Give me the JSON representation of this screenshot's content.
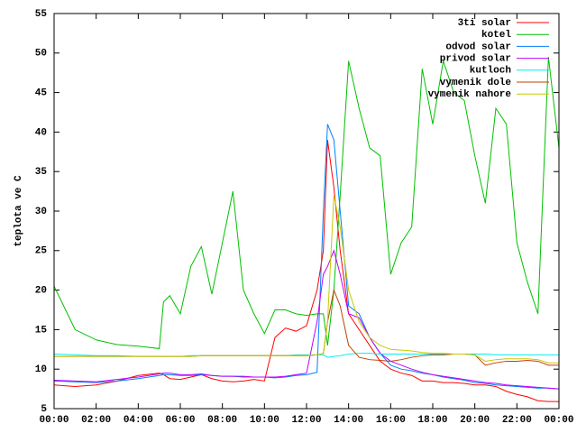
{
  "chart_data": {
    "type": "line",
    "y_label": "teplota ve C",
    "xlim": [
      0,
      24
    ],
    "xticks": [
      {
        "value": 0,
        "label": "00:00"
      },
      {
        "value": 2,
        "label": "02:00"
      },
      {
        "value": 4,
        "label": "04:00"
      },
      {
        "value": 6,
        "label": "06:00"
      },
      {
        "value": 8,
        "label": "08:00"
      },
      {
        "value": 10,
        "label": "10:00"
      },
      {
        "value": 12,
        "label": "12:00"
      },
      {
        "value": 14,
        "label": "14:00"
      },
      {
        "value": 16,
        "label": "16:00"
      },
      {
        "value": 18,
        "label": "18:00"
      },
      {
        "value": 20,
        "label": "20:00"
      },
      {
        "value": 22,
        "label": "22:00"
      },
      {
        "value": 24,
        "label": "00:00"
      }
    ],
    "ylim": [
      5,
      55
    ],
    "yticks": [
      5,
      10,
      15,
      20,
      25,
      30,
      35,
      40,
      45,
      50,
      55
    ],
    "legend": "top-right",
    "x": [
      0,
      1,
      2,
      3,
      4,
      5,
      5.2,
      5.5,
      6,
      6.5,
      7,
      7.5,
      8,
      8.5,
      9,
      9.5,
      10,
      10.5,
      11,
      11.5,
      12,
      12.5,
      12.8,
      13,
      13.3,
      13.6,
      14,
      14.5,
      15,
      15.5,
      16,
      16.5,
      17,
      17.5,
      18,
      18.5,
      19,
      19.5,
      20,
      20.5,
      21,
      21.5,
      22,
      22.5,
      23,
      23.5,
      24
    ],
    "series": [
      {
        "name": "3ti solar",
        "color": "#ff0000",
        "values": [
          8,
          7.8,
          8,
          8.5,
          9.2,
          9.5,
          9.3,
          8.8,
          8.7,
          9,
          9.3,
          8.8,
          8.5,
          8.4,
          8.5,
          8.7,
          8.5,
          14,
          15.2,
          14.8,
          15.5,
          20,
          25,
          39,
          33,
          25,
          17,
          15,
          13,
          11,
          10,
          9.5,
          9.2,
          8.5,
          8.5,
          8.3,
          8.3,
          8.2,
          8,
          8,
          7.8,
          7.2,
          6.8,
          6.5,
          6,
          5.9,
          5.9
        ]
      },
      {
        "name": "kotel",
        "color": "#00c000",
        "values": [
          20.5,
          15,
          13.7,
          13.1,
          12.9,
          12.6,
          18.5,
          19.3,
          17,
          23,
          25.5,
          19.5,
          26,
          32.5,
          20,
          17,
          14.5,
          17.5,
          17.5,
          17,
          16.8,
          17,
          17,
          13,
          20,
          32,
          49,
          43,
          38,
          37,
          22,
          26,
          28,
          48,
          41,
          49,
          45,
          44,
          37,
          31,
          43,
          41,
          26,
          21,
          17,
          49.5,
          38
        ]
      },
      {
        "name": "odvod solar",
        "color": "#0080ff",
        "values": [
          8.5,
          8.4,
          8.3,
          8.5,
          8.8,
          9.2,
          9.3,
          9.3,
          9.2,
          9.2,
          9.3,
          9.2,
          9.1,
          9.1,
          9.0,
          9.0,
          9.0,
          8.9,
          9.0,
          9.2,
          9.3,
          9.6,
          30,
          41,
          39,
          30,
          18,
          17,
          14,
          12,
          10.5,
          10,
          9.8,
          9.5,
          9.3,
          9.0,
          8.8,
          8.6,
          8.3,
          8.2,
          8.0,
          7.9,
          7.8,
          7.7,
          7.6,
          7.6,
          7.5
        ]
      },
      {
        "name": "privod solar",
        "color": "#c000ff",
        "values": [
          8.6,
          8.5,
          8.4,
          8.7,
          9.0,
          9.4,
          9.5,
          9.5,
          9.3,
          9.3,
          9.4,
          9.2,
          9.1,
          9.1,
          9.1,
          9.0,
          9.0,
          9.0,
          9.1,
          9.3,
          9.5,
          16,
          22,
          23,
          25,
          22,
          17,
          16.5,
          14,
          12,
          11,
          10.5,
          10,
          9.6,
          9.3,
          9.1,
          8.9,
          8.7,
          8.5,
          8.3,
          8.2,
          8.0,
          7.9,
          7.8,
          7.7,
          7.6,
          7.5
        ]
      },
      {
        "name": "kutloch",
        "color": "#00eeee",
        "values": [
          11.9,
          11.8,
          11.7,
          11.7,
          11.6,
          11.6,
          11.6,
          11.6,
          11.6,
          11.7,
          11.7,
          11.7,
          11.7,
          11.7,
          11.7,
          11.7,
          11.7,
          11.7,
          11.7,
          11.8,
          11.8,
          11.8,
          11.8,
          11.5,
          11.6,
          11.7,
          11.9,
          12,
          12,
          11.9,
          11.9,
          11.9,
          11.9,
          11.9,
          11.9,
          11.9,
          11.9,
          11.9,
          11.9,
          11.9,
          11.8,
          11.8,
          11.8,
          11.8,
          11.8,
          11.8,
          11.8
        ]
      },
      {
        "name": "vymenik dole",
        "color": "#c04000",
        "values": [
          11.6,
          11.6,
          11.6,
          11.6,
          11.6,
          11.6,
          11.6,
          11.6,
          11.6,
          11.6,
          11.7,
          11.7,
          11.7,
          11.7,
          11.7,
          11.7,
          11.7,
          11.7,
          11.7,
          11.7,
          11.7,
          11.8,
          12,
          16,
          20,
          18,
          13,
          11.5,
          11.2,
          11.1,
          11,
          11.2,
          11.5,
          11.7,
          11.8,
          11.8,
          11.9,
          11.9,
          11.8,
          10.5,
          10.8,
          11,
          11,
          11.1,
          11,
          10.5,
          10.5
        ]
      },
      {
        "name": "vymenik nahore",
        "color": "#c8c800",
        "values": [
          11.6,
          11.6,
          11.6,
          11.6,
          11.6,
          11.6,
          11.6,
          11.6,
          11.6,
          11.6,
          11.7,
          11.7,
          11.7,
          11.7,
          11.7,
          11.7,
          11.7,
          11.7,
          11.7,
          11.7,
          11.7,
          11.8,
          12,
          16,
          32,
          28,
          20,
          16,
          14,
          13,
          12.5,
          12.4,
          12.3,
          12.1,
          12,
          12,
          11.9,
          11.9,
          11.8,
          11,
          11.2,
          11.3,
          11.3,
          11.3,
          11.2,
          10.8,
          10.8
        ]
      }
    ]
  }
}
